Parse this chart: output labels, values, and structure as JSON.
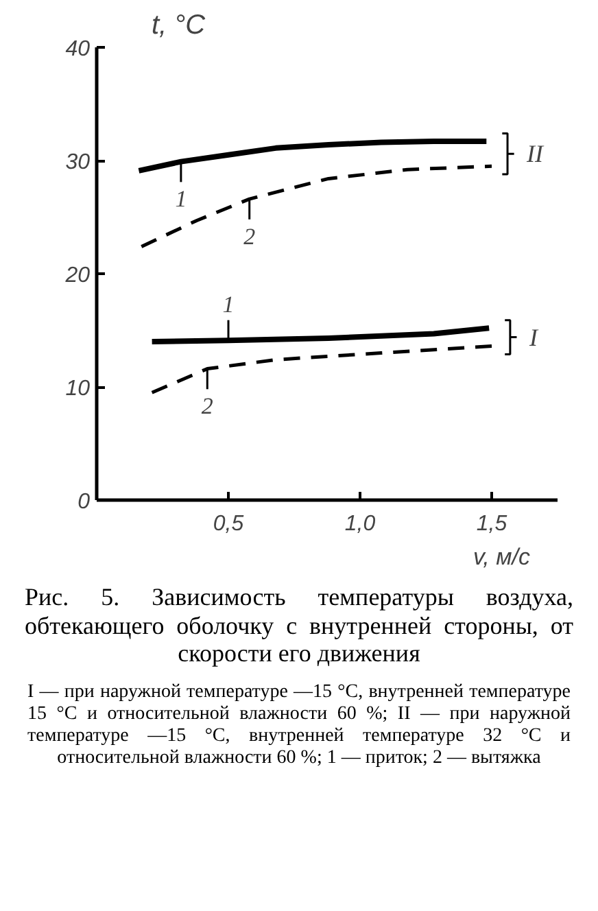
{
  "chart_data": {
    "type": "line",
    "title": "Рис. 5. Зависимость температуры воздуха, обтекающего оболочку с внутренней стороны, от скорости его движения",
    "xlabel": "v, м/с",
    "ylabel": "t, °C",
    "xlim": [
      0,
      1.75
    ],
    "ylim": [
      0,
      40
    ],
    "xticks": [
      {
        "value": 0.5,
        "label": "0,5"
      },
      {
        "value": 1.0,
        "label": "1,0"
      },
      {
        "value": 1.5,
        "label": "1,5"
      }
    ],
    "yticks": [
      0,
      10,
      20,
      30,
      40
    ],
    "grid": false,
    "marker": "none",
    "series": [
      {
        "color": "#000000",
        "line_style": "solid",
        "x": [
          0.16,
          0.32,
          0.5,
          0.68,
          0.88,
          1.08,
          1.28,
          1.48
        ],
        "values": [
          29.1,
          29.9,
          30.5,
          31.1,
          31.4,
          31.6,
          31.7,
          31.7
        ]
      },
      {
        "color": "#000000",
        "line_style": "dashed",
        "x": [
          0.17,
          0.38,
          0.58,
          0.88,
          1.18,
          1.5
        ],
        "values": [
          22.4,
          24.7,
          26.6,
          28.4,
          29.2,
          29.5
        ]
      },
      {
        "color": "#000000",
        "line_style": "solid",
        "x": [
          0.21,
          0.5,
          0.88,
          1.28,
          1.49
        ],
        "values": [
          14.0,
          14.1,
          14.3,
          14.7,
          15.2
        ]
      },
      {
        "color": "#000000",
        "line_style": "dashed",
        "x": [
          0.21,
          0.42,
          0.68,
          1.08,
          1.5
        ],
        "values": [
          9.5,
          11.6,
          12.4,
          13.0,
          13.6
        ]
      }
    ],
    "annotations": [
      {
        "text": "1",
        "x": 0.32,
        "y": 29.9
      },
      {
        "text": "2",
        "x": 0.58,
        "y": 26.6
      },
      {
        "text": "1",
        "x": 0.5,
        "y": 14.1
      },
      {
        "text": "2",
        "x": 0.42,
        "y": 11.6
      },
      {
        "text": "II",
        "x": 1.48,
        "y": 31.7
      },
      {
        "text": "I",
        "x": 1.49,
        "y": 15.2
      },
      "I — при наружной температуре —15 °С, внутренней температуре 15 °С и относительной влажности 60 %; II — при наружной температуре —15 °С, внутренней температуре 32 °С и относительной влажности 60 %; 1 — приток; 2 — вытяжка"
    ]
  }
}
